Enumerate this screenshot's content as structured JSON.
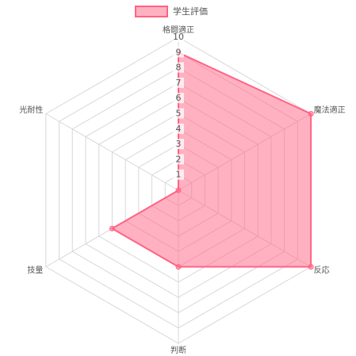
{
  "chart_data": {
    "type": "radar",
    "categories": [
      "格闘適正",
      "魔法適正",
      "反応",
      "判断",
      "技量",
      "光耐性"
    ],
    "series": [
      {
        "name": "学生評価",
        "color": "#ff6384",
        "values": [
          9,
          10,
          10,
          5,
          5,
          0
        ]
      }
    ],
    "rlim": [
      0,
      10
    ],
    "rticks": [
      1,
      2,
      3,
      4,
      5,
      6,
      7,
      8,
      9,
      10
    ],
    "grid": true,
    "legend": "top"
  }
}
